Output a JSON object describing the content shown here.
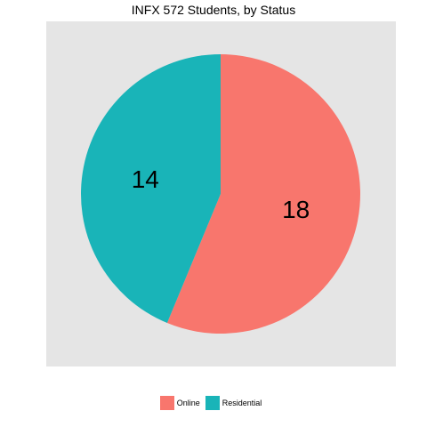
{
  "chart_data": {
    "type": "pie",
    "title": "INFX 572 Students, by Status",
    "slices": [
      {
        "label": "Online",
        "value": 18,
        "color": "#f8766d"
      },
      {
        "label": "Residential",
        "value": 14,
        "color": "#19b4b8"
      }
    ],
    "data_labels": [
      "18",
      "14"
    ],
    "legend_position": "bottom",
    "background": "#e5e5e5"
  },
  "legend": {
    "items": [
      {
        "label": "Online",
        "color": "#f8766d"
      },
      {
        "label": "Residential",
        "color": "#19b4b8"
      }
    ]
  }
}
